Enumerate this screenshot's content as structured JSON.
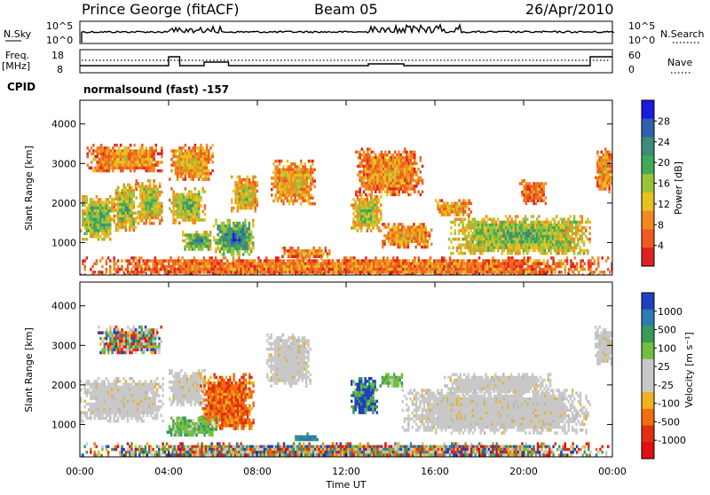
{
  "header": {
    "station": "Prince George (fitACF)",
    "beam": "Beam 05",
    "date": "26/Apr/2010"
  },
  "top_panels": {
    "nsky_label": "N.Sky",
    "nsky_ticks": [
      "10^5",
      "10^0"
    ],
    "nsearch_label": "N.Search",
    "nsearch_ticks": [
      "10^5",
      "10^0"
    ],
    "freq_label_1": "Freq.",
    "freq_label_2": "[MHz]",
    "freq_ticks": [
      "18",
      "8"
    ],
    "nave_label": "Nave",
    "nave_ticks": [
      "60",
      "0"
    ],
    "cpid_label": "CPID",
    "cpid_text": "normalsound (fast) -157"
  },
  "chart_data": [
    {
      "type": "heatmap",
      "name": "power",
      "ylabel": "Slant Range [km]",
      "yticks": [
        "4000",
        "3000",
        "2000",
        "1000"
      ],
      "ylim": [
        180,
        4600
      ],
      "xlim": [
        0,
        24
      ],
      "colorbar_label": "Power [dB]",
      "colorbar_ticks": [
        "28",
        "24",
        "20",
        "16",
        "12",
        "8",
        "4"
      ],
      "colorbar_colors": [
        "#1a1ae0",
        "#2f5fb0",
        "#3f8a7a",
        "#3faa5a",
        "#9ac23a",
        "#e8c020",
        "#f08a20",
        "#f05a20",
        "#e02020"
      ],
      "regions": [
        {
          "t0": 0.0,
          "t1": 1.5,
          "r0": 1100,
          "r1": 2200,
          "level": 0.62
        },
        {
          "t0": 1.5,
          "t1": 2.5,
          "r0": 1300,
          "r1": 2500,
          "level": 0.55
        },
        {
          "t0": 2.5,
          "t1": 3.7,
          "r0": 1500,
          "r1": 2600,
          "level": 0.5
        },
        {
          "t0": 0.3,
          "t1": 3.7,
          "r0": 2800,
          "r1": 3500,
          "level": 0.28
        },
        {
          "t0": 4.0,
          "t1": 5.6,
          "r0": 1500,
          "r1": 2400,
          "level": 0.55
        },
        {
          "t0": 4.0,
          "t1": 6.0,
          "r0": 2600,
          "r1": 3500,
          "level": 0.35
        },
        {
          "t0": 4.6,
          "t1": 6.0,
          "r0": 800,
          "r1": 1300,
          "level": 0.7
        },
        {
          "t0": 6.0,
          "t1": 7.8,
          "r0": 700,
          "r1": 1600,
          "level": 0.8
        },
        {
          "t0": 6.8,
          "t1": 8.0,
          "r0": 1800,
          "r1": 2700,
          "level": 0.45
        },
        {
          "t0": 8.6,
          "t1": 10.6,
          "r0": 2000,
          "r1": 3100,
          "level": 0.35
        },
        {
          "t0": 9.0,
          "t1": 11.2,
          "r0": 650,
          "r1": 900,
          "level": 0.25
        },
        {
          "t0": 12.2,
          "t1": 13.6,
          "r0": 1300,
          "r1": 2200,
          "level": 0.5
        },
        {
          "t0": 12.4,
          "t1": 15.4,
          "r0": 2200,
          "r1": 3400,
          "level": 0.28
        },
        {
          "t0": 13.6,
          "t1": 15.8,
          "r0": 900,
          "r1": 1500,
          "level": 0.3
        },
        {
          "t0": 16.6,
          "t1": 23.0,
          "r0": 700,
          "r1": 1700,
          "level": 0.58
        },
        {
          "t0": 16.0,
          "t1": 17.6,
          "r0": 1700,
          "r1": 2100,
          "level": 0.35
        },
        {
          "t0": 19.8,
          "t1": 21.0,
          "r0": 2000,
          "r1": 2600,
          "level": 0.2
        },
        {
          "t0": 23.2,
          "t1": 24.0,
          "r0": 2300,
          "r1": 3400,
          "level": 0.3
        },
        {
          "t0": 0.0,
          "t1": 24.0,
          "r0": 200,
          "r1": 650,
          "level": 0.22
        }
      ]
    },
    {
      "type": "heatmap",
      "name": "velocity",
      "ylabel": "Slant Range [km]",
      "yticks": [
        "4000",
        "3000",
        "2000",
        "1000"
      ],
      "ylim": [
        180,
        4600
      ],
      "xlim": [
        0,
        24
      ],
      "colorbar_label": "Velocity [m s⁻¹]",
      "colorbar_ticks": [
        "1000",
        "500",
        "100",
        "25",
        "-25",
        "-100",
        "-500",
        "-1000"
      ],
      "colorbar_colors": [
        "#2040c0",
        "#2f7ab0",
        "#3a9a5a",
        "#70c040",
        "#c8c8c8",
        "#c8c8c8",
        "#f0b020",
        "#f07010",
        "#e03010",
        "#e01010"
      ],
      "regions": [
        {
          "t0": 0.0,
          "t1": 3.7,
          "r0": 1100,
          "r1": 2200,
          "cls": "gray"
        },
        {
          "t0": 4.0,
          "t1": 5.6,
          "r0": 1500,
          "r1": 2400,
          "cls": "gray"
        },
        {
          "t0": 0.8,
          "t1": 3.7,
          "r0": 2800,
          "r1": 3500,
          "cls": "mixed"
        },
        {
          "t0": 5.4,
          "t1": 7.8,
          "r0": 900,
          "r1": 2300,
          "cls": "orange"
        },
        {
          "t0": 3.9,
          "t1": 6.2,
          "r0": 700,
          "r1": 1200,
          "cls": "green"
        },
        {
          "t0": 8.4,
          "t1": 10.4,
          "r0": 2000,
          "r1": 3300,
          "cls": "gray"
        },
        {
          "t0": 9.6,
          "t1": 10.8,
          "r0": 600,
          "r1": 800,
          "cls": "bluegreen"
        },
        {
          "t0": 12.2,
          "t1": 13.4,
          "r0": 1300,
          "r1": 2200,
          "cls": "blue"
        },
        {
          "t0": 13.5,
          "t1": 14.5,
          "r0": 2000,
          "r1": 2300,
          "cls": "green"
        },
        {
          "t0": 14.5,
          "t1": 23.0,
          "r0": 800,
          "r1": 1900,
          "cls": "gray"
        },
        {
          "t0": 16.4,
          "t1": 21.2,
          "r0": 1800,
          "r1": 2300,
          "cls": "gray"
        },
        {
          "t0": 23.2,
          "t1": 24.0,
          "r0": 2500,
          "r1": 3500,
          "cls": "gray"
        },
        {
          "t0": 0.0,
          "t1": 24.0,
          "r0": 200,
          "r1": 550,
          "cls": "mixed"
        }
      ]
    }
  ],
  "xaxis": {
    "label": "Time UT",
    "ticks": [
      "00:00",
      "04:00",
      "08:00",
      "12:00",
      "16:00",
      "20:00",
      "00:00"
    ]
  }
}
